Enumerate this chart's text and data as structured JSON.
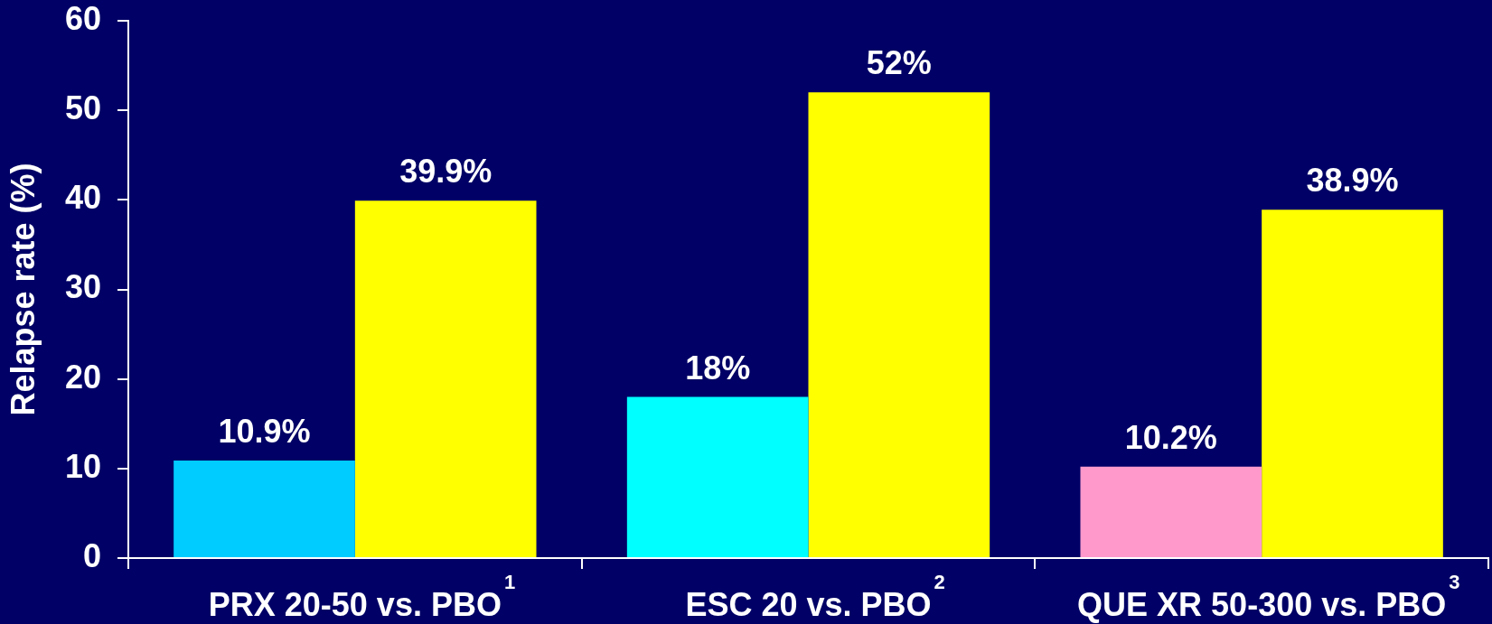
{
  "chart_data": {
    "type": "bar",
    "ylabel": "Relapse rate (%)",
    "categories": [
      "PRX 20-50 vs. PBO$^{1}$",
      "ESC 20 vs. PBO$^{2}$",
      "QUE XR 50-300 vs. PBO$^{3}$"
    ],
    "series": [
      {
        "colors": [
          "#00ccff",
          "#00ffff",
          "#ff99cc"
        ],
        "values": [
          10.9,
          18,
          10.2
        ],
        "value_labels": [
          "10.9%",
          "18%",
          "10.2%"
        ]
      },
      {
        "color": "#ffff00",
        "values": [
          39.9,
          52,
          38.9
        ],
        "value_labels": [
          "39.9%",
          "52%",
          "38.9%"
        ]
      }
    ],
    "ylim": [
      0,
      60
    ],
    "yticks": [
      0,
      10,
      20,
      30,
      40,
      50,
      60
    ],
    "grid": false,
    "legend": false
  }
}
